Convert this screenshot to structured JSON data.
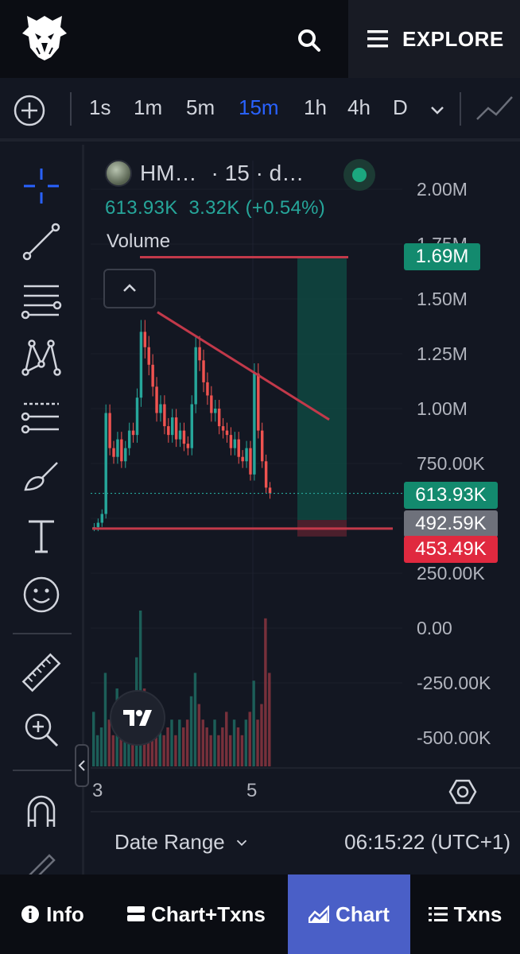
{
  "header": {
    "explore_label": "EXPLORE"
  },
  "intervals": {
    "items": [
      "1s",
      "1m",
      "5m",
      "15m",
      "1h",
      "4h",
      "D"
    ],
    "active": "15m"
  },
  "legend": {
    "symbol": "HM…",
    "interval_info": "· 15 · d…",
    "price": "613.93K",
    "change": "3.32K (+0.54%)",
    "volume_label": "Volume"
  },
  "price_axis": {
    "ticks": [
      "2.00M",
      "1.75M",
      "1.50M",
      "1.25M",
      "1.00M",
      "750.00K",
      "500.00K",
      "250.00K",
      "0.00",
      "-250.00K",
      "-500.00K"
    ]
  },
  "badges": {
    "top": "1.69M",
    "last": "613.93K",
    "mid": "492.59K",
    "low": "453.49K"
  },
  "time_axis": {
    "ticks": [
      "3",
      "5"
    ]
  },
  "footer": {
    "date_range_label": "Date Range",
    "clock": "06:15:22 (UTC+1)"
  },
  "nav": {
    "tabs": [
      {
        "label": "Info",
        "icon": "info-icon"
      },
      {
        "label": "Chart+Txns",
        "icon": "split-view-icon"
      },
      {
        "label": "Chart",
        "icon": "area-chart-icon"
      },
      {
        "label": "Txns",
        "icon": "list-icon"
      }
    ],
    "active": "Chart"
  },
  "colors": {
    "up": "#26a69a",
    "down": "#ef5350",
    "accent": "#2962ff",
    "drawing": "#c2394a",
    "position_target": "#0f4f46"
  },
  "chart_data": {
    "type": "candlestick",
    "ylim": [
      -600000,
      2100000
    ],
    "price_ticks": [
      2000000,
      1750000,
      1500000,
      1250000,
      1000000,
      750000,
      500000,
      250000,
      0,
      -250000,
      -500000
    ],
    "last_price": 613930,
    "series_close": [
      460000,
      480000,
      520000,
      980000,
      820000,
      780000,
      860000,
      760000,
      820000,
      900000,
      880000,
      1050000,
      1350000,
      1280000,
      1200000,
      1100000,
      980000,
      1020000,
      920000,
      880000,
      960000,
      860000,
      900000,
      840000,
      820000,
      1020000,
      1280000,
      1220000,
      1120000,
      1060000,
      980000,
      1000000,
      920000,
      900000,
      880000,
      820000,
      860000,
      780000,
      760000,
      820000,
      700000,
      1160000,
      900000,
      760000,
      640000,
      613930
    ],
    "volume_relative": [
      0.35,
      0.2,
      0.25,
      0.6,
      0.3,
      0.2,
      0.5,
      0.3,
      0.25,
      0.3,
      0.45,
      0.7,
      1.0,
      0.5,
      0.35,
      0.3,
      0.25,
      0.3,
      0.2,
      0.25,
      0.3,
      0.2,
      0.3,
      0.25,
      0.3,
      0.45,
      0.6,
      0.4,
      0.3,
      0.25,
      0.2,
      0.3,
      0.2,
      0.25,
      0.35,
      0.2,
      0.3,
      0.25,
      0.2,
      0.3,
      0.35,
      0.55,
      0.3,
      0.4,
      0.95,
      0.6
    ],
    "drawings": {
      "resistance_top": 1690000,
      "support": 453490,
      "trendline_from": 1440000,
      "trendline_to": 950000,
      "position_target": 1690000,
      "position_entry": 492590,
      "position_stop": 453490
    }
  }
}
